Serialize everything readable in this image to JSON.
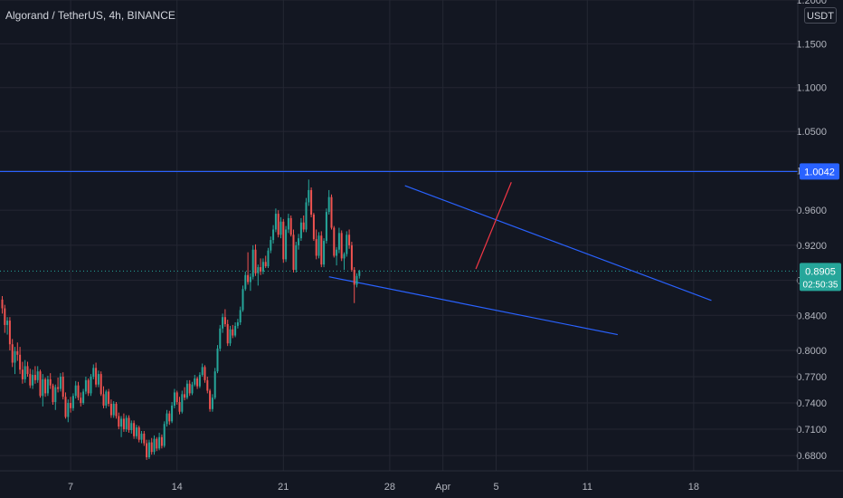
{
  "title": "Algorand / TetherUS, 4h, BINANCE",
  "unit": "USDT",
  "colors": {
    "background": "#131722",
    "grid": "#242733",
    "up": "#26a69a",
    "down": "#ef5350",
    "trendline": "#2962ff",
    "projection": "#f23645",
    "axis_text": "#b2b5be"
  },
  "chart_data": {
    "type": "candlestick",
    "title": "Algorand / TetherUS, 4h, BINANCE",
    "ylim": [
      0.6625,
      1.2
    ],
    "y_ticks": [
      "0.6800",
      "0.7100",
      "0.7400",
      "0.7700",
      "0.8000",
      "0.8400",
      "0.8800",
      "0.9200",
      "0.9600",
      "1.0050",
      "1.0500",
      "1.1000",
      "1.1500",
      "1.2000"
    ],
    "x_ticks": [
      "7",
      "14",
      "21",
      "28",
      "Apr",
      "5",
      "11",
      "18"
    ],
    "x_tick_index": [
      27,
      69,
      111,
      153,
      174,
      195,
      231,
      273
    ],
    "horizontal_line": {
      "price": 1.0042,
      "label": "1.0042"
    },
    "last_price": {
      "price": 0.8905,
      "label": "0.8905",
      "countdown": "02:50:35"
    },
    "candles": [
      [
        0.858,
        0.862,
        0.842,
        0.848
      ],
      [
        0.848,
        0.852,
        0.82,
        0.829
      ],
      [
        0.829,
        0.838,
        0.818,
        0.834
      ],
      [
        0.834,
        0.838,
        0.8,
        0.807
      ],
      [
        0.807,
        0.813,
        0.781,
        0.786
      ],
      [
        0.786,
        0.804,
        0.773,
        0.799
      ],
      [
        0.799,
        0.809,
        0.788,
        0.795
      ],
      [
        0.795,
        0.804,
        0.773,
        0.778
      ],
      [
        0.778,
        0.787,
        0.762,
        0.767
      ],
      [
        0.767,
        0.789,
        0.763,
        0.782
      ],
      [
        0.782,
        0.787,
        0.77,
        0.773
      ],
      [
        0.773,
        0.779,
        0.757,
        0.76
      ],
      [
        0.76,
        0.778,
        0.756,
        0.772
      ],
      [
        0.772,
        0.782,
        0.762,
        0.766
      ],
      [
        0.766,
        0.782,
        0.763,
        0.776
      ],
      [
        0.776,
        0.778,
        0.746,
        0.748
      ],
      [
        0.748,
        0.773,
        0.736,
        0.767
      ],
      [
        0.767,
        0.769,
        0.747,
        0.751
      ],
      [
        0.751,
        0.771,
        0.748,
        0.767
      ],
      [
        0.767,
        0.774,
        0.756,
        0.76
      ],
      [
        0.76,
        0.762,
        0.738,
        0.741
      ],
      [
        0.741,
        0.761,
        0.732,
        0.758
      ],
      [
        0.758,
        0.769,
        0.752,
        0.756
      ],
      [
        0.756,
        0.774,
        0.753,
        0.77
      ],
      [
        0.77,
        0.775,
        0.744,
        0.747
      ],
      [
        0.747,
        0.752,
        0.722,
        0.724
      ],
      [
        0.724,
        0.744,
        0.718,
        0.74
      ],
      [
        0.74,
        0.747,
        0.729,
        0.734
      ],
      [
        0.734,
        0.751,
        0.731,
        0.748
      ],
      [
        0.748,
        0.765,
        0.745,
        0.76
      ],
      [
        0.76,
        0.764,
        0.743,
        0.746
      ],
      [
        0.746,
        0.752,
        0.736,
        0.74
      ],
      [
        0.74,
        0.756,
        0.738,
        0.753
      ],
      [
        0.753,
        0.77,
        0.75,
        0.766
      ],
      [
        0.766,
        0.768,
        0.748,
        0.751
      ],
      [
        0.751,
        0.773,
        0.748,
        0.77
      ],
      [
        0.77,
        0.784,
        0.767,
        0.78
      ],
      [
        0.78,
        0.786,
        0.758,
        0.761
      ],
      [
        0.761,
        0.777,
        0.758,
        0.773
      ],
      [
        0.773,
        0.776,
        0.748,
        0.75
      ],
      [
        0.75,
        0.759,
        0.734,
        0.737
      ],
      [
        0.737,
        0.755,
        0.734,
        0.753
      ],
      [
        0.753,
        0.756,
        0.736,
        0.739
      ],
      [
        0.739,
        0.744,
        0.723,
        0.726
      ],
      [
        0.726,
        0.742,
        0.723,
        0.739
      ],
      [
        0.739,
        0.741,
        0.722,
        0.725
      ],
      [
        0.725,
        0.729,
        0.71,
        0.713
      ],
      [
        0.713,
        0.725,
        0.701,
        0.722
      ],
      [
        0.722,
        0.728,
        0.707,
        0.71
      ],
      [
        0.71,
        0.726,
        0.707,
        0.723
      ],
      [
        0.723,
        0.726,
        0.706,
        0.709
      ],
      [
        0.709,
        0.72,
        0.705,
        0.717
      ],
      [
        0.717,
        0.72,
        0.699,
        0.702
      ],
      [
        0.702,
        0.715,
        0.699,
        0.712
      ],
      [
        0.712,
        0.714,
        0.695,
        0.698
      ],
      [
        0.698,
        0.708,
        0.694,
        0.705
      ],
      [
        0.705,
        0.708,
        0.691,
        0.694
      ],
      [
        0.694,
        0.698,
        0.675,
        0.678
      ],
      [
        0.678,
        0.698,
        0.676,
        0.695
      ],
      [
        0.695,
        0.7,
        0.681,
        0.684
      ],
      [
        0.684,
        0.703,
        0.681,
        0.699
      ],
      [
        0.699,
        0.701,
        0.685,
        0.688
      ],
      [
        0.688,
        0.706,
        0.686,
        0.701
      ],
      [
        0.701,
        0.704,
        0.688,
        0.691
      ],
      [
        0.691,
        0.719,
        0.689,
        0.716
      ],
      [
        0.716,
        0.732,
        0.713,
        0.728
      ],
      [
        0.728,
        0.731,
        0.715,
        0.719
      ],
      [
        0.719,
        0.741,
        0.717,
        0.737
      ],
      [
        0.737,
        0.756,
        0.734,
        0.752
      ],
      [
        0.752,
        0.754,
        0.738,
        0.741
      ],
      [
        0.741,
        0.747,
        0.727,
        0.73
      ],
      [
        0.73,
        0.754,
        0.728,
        0.75
      ],
      [
        0.75,
        0.758,
        0.743,
        0.746
      ],
      [
        0.746,
        0.766,
        0.744,
        0.762
      ],
      [
        0.762,
        0.766,
        0.748,
        0.751
      ],
      [
        0.751,
        0.764,
        0.749,
        0.761
      ],
      [
        0.761,
        0.772,
        0.759,
        0.768
      ],
      [
        0.768,
        0.77,
        0.756,
        0.759
      ],
      [
        0.759,
        0.775,
        0.757,
        0.772
      ],
      [
        0.772,
        0.785,
        0.77,
        0.781
      ],
      [
        0.781,
        0.783,
        0.763,
        0.766
      ],
      [
        0.766,
        0.77,
        0.751,
        0.754
      ],
      [
        0.754,
        0.756,
        0.73,
        0.733
      ],
      [
        0.733,
        0.75,
        0.73,
        0.746
      ],
      [
        0.746,
        0.78,
        0.744,
        0.776
      ],
      [
        0.776,
        0.806,
        0.774,
        0.802
      ],
      [
        0.802,
        0.829,
        0.799,
        0.825
      ],
      [
        0.825,
        0.842,
        0.82,
        0.838
      ],
      [
        0.838,
        0.847,
        0.827,
        0.83
      ],
      [
        0.83,
        0.835,
        0.805,
        0.808
      ],
      [
        0.808,
        0.828,
        0.805,
        0.824
      ],
      [
        0.824,
        0.829,
        0.814,
        0.817
      ],
      [
        0.817,
        0.832,
        0.815,
        0.828
      ],
      [
        0.828,
        0.836,
        0.825,
        0.832
      ],
      [
        0.832,
        0.85,
        0.829,
        0.846
      ],
      [
        0.846,
        0.874,
        0.844,
        0.87
      ],
      [
        0.87,
        0.89,
        0.868,
        0.886
      ],
      [
        0.886,
        0.912,
        0.875,
        0.878
      ],
      [
        0.878,
        0.888,
        0.868,
        0.884
      ],
      [
        0.884,
        0.92,
        0.881,
        0.915
      ],
      [
        0.915,
        0.921,
        0.885,
        0.888
      ],
      [
        0.888,
        0.898,
        0.874,
        0.895
      ],
      [
        0.895,
        0.905,
        0.886,
        0.89
      ],
      [
        0.89,
        0.905,
        0.887,
        0.901
      ],
      [
        0.901,
        0.908,
        0.894,
        0.896
      ],
      [
        0.896,
        0.917,
        0.894,
        0.914
      ],
      [
        0.914,
        0.93,
        0.911,
        0.926
      ],
      [
        0.926,
        0.943,
        0.922,
        0.938
      ],
      [
        0.938,
        0.962,
        0.935,
        0.956
      ],
      [
        0.956,
        0.96,
        0.929,
        0.932
      ],
      [
        0.932,
        0.952,
        0.928,
        0.947
      ],
      [
        0.947,
        0.95,
        0.9,
        0.904
      ],
      [
        0.904,
        0.942,
        0.901,
        0.938
      ],
      [
        0.938,
        0.956,
        0.934,
        0.951
      ],
      [
        0.951,
        0.954,
        0.93,
        0.932
      ],
      [
        0.932,
        0.938,
        0.889,
        0.892
      ],
      [
        0.892,
        0.924,
        0.889,
        0.92
      ],
      [
        0.92,
        0.933,
        0.915,
        0.928
      ],
      [
        0.928,
        0.951,
        0.925,
        0.946
      ],
      [
        0.946,
        0.954,
        0.935,
        0.938
      ],
      [
        0.938,
        0.974,
        0.935,
        0.969
      ],
      [
        0.969,
        0.995,
        0.965,
        0.983
      ],
      [
        0.983,
        0.986,
        0.952,
        0.955
      ],
      [
        0.955,
        0.957,
        0.925,
        0.927
      ],
      [
        0.927,
        0.938,
        0.904,
        0.908
      ],
      [
        0.908,
        0.935,
        0.905,
        0.931
      ],
      [
        0.931,
        0.936,
        0.895,
        0.898
      ],
      [
        0.898,
        0.928,
        0.895,
        0.925
      ],
      [
        0.925,
        0.962,
        0.922,
        0.958
      ],
      [
        0.958,
        0.983,
        0.955,
        0.975
      ],
      [
        0.975,
        0.978,
        0.938,
        0.94
      ],
      [
        0.94,
        0.942,
        0.906,
        0.908
      ],
      [
        0.908,
        0.918,
        0.897,
        0.915
      ],
      [
        0.915,
        0.94,
        0.911,
        0.934
      ],
      [
        0.934,
        0.937,
        0.902,
        0.905
      ],
      [
        0.905,
        0.912,
        0.892,
        0.91
      ],
      [
        0.91,
        0.936,
        0.907,
        0.932
      ],
      [
        0.932,
        0.938,
        0.916,
        0.92
      ],
      [
        0.92,
        0.924,
        0.89,
        0.892
      ],
      [
        0.892,
        0.895,
        0.854,
        0.875
      ],
      [
        0.875,
        0.888,
        0.872,
        0.885
      ],
      [
        0.885,
        0.892,
        0.882,
        0.8905
      ]
    ],
    "annotations": [
      {
        "type": "trendline",
        "name": "wedge-upper",
        "from": {
          "index": 159,
          "price": 0.988
        },
        "to": {
          "index": 280,
          "price": 0.857
        }
      },
      {
        "type": "trendline",
        "name": "wedge-lower",
        "from": {
          "index": 129,
          "price": 0.884
        },
        "to": {
          "index": 243,
          "price": 0.818
        }
      },
      {
        "type": "projection",
        "name": "breakout-arrow",
        "from": {
          "index": 187,
          "price": 0.893
        },
        "to": {
          "index": 201,
          "price": 0.992
        }
      }
    ]
  }
}
